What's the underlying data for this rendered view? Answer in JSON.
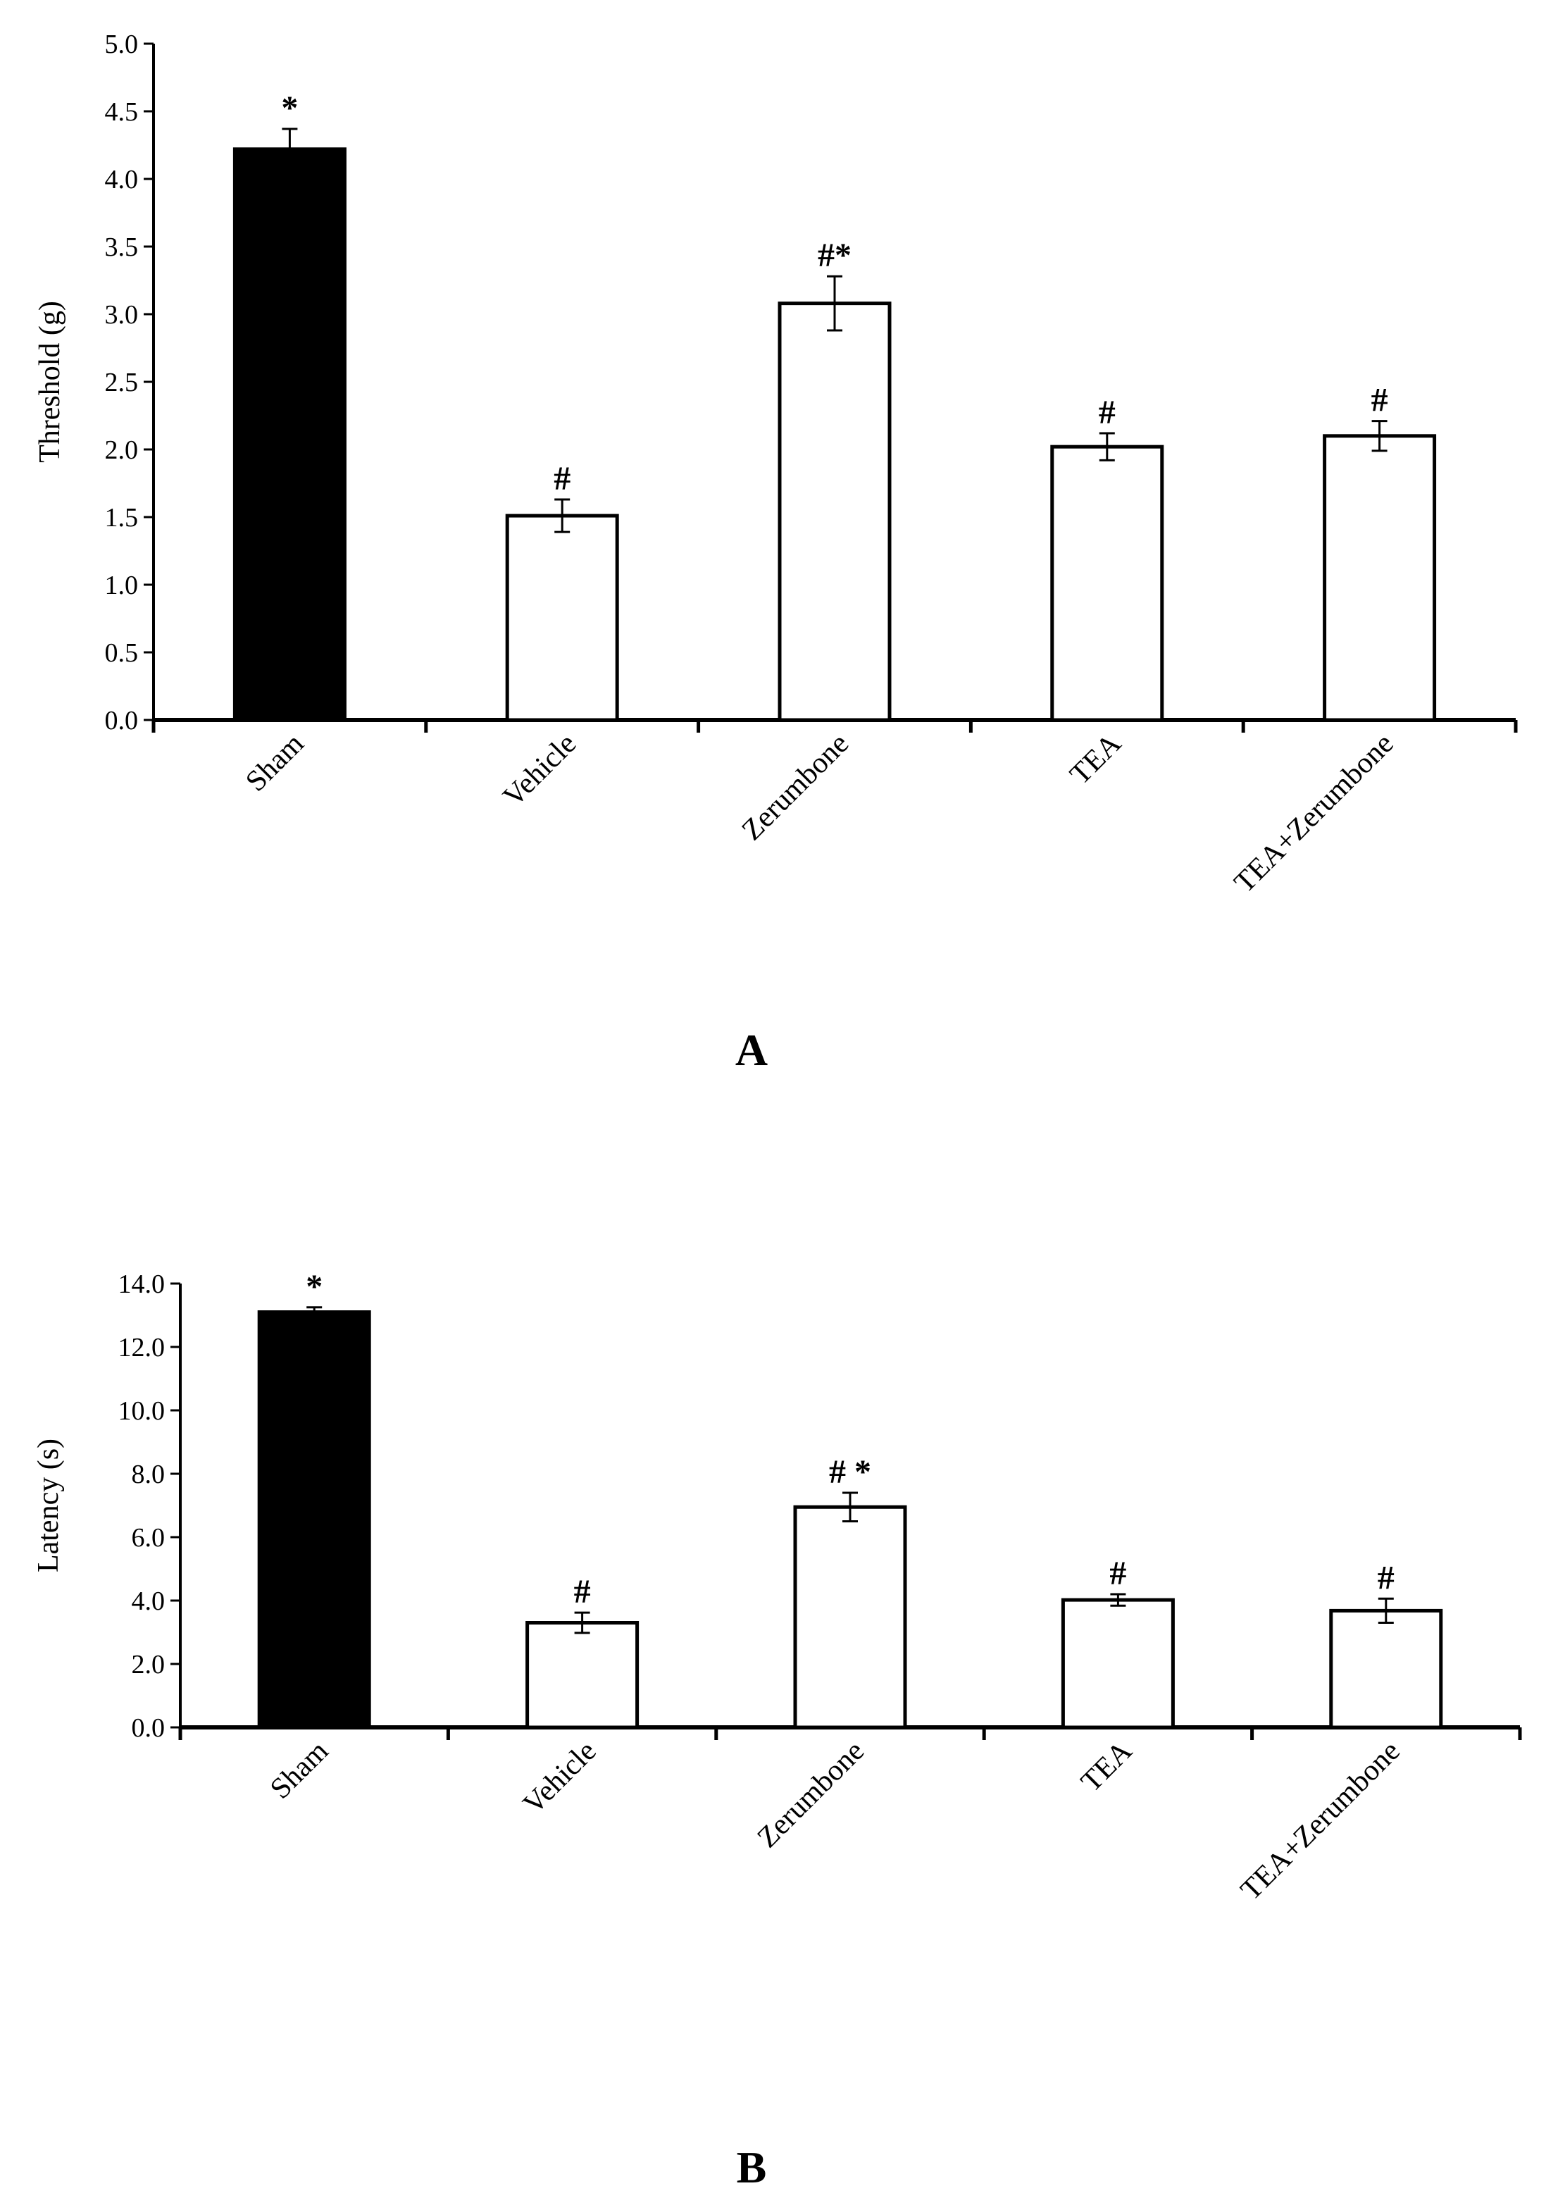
{
  "chart_data": [
    {
      "type": "bar",
      "panel_label": "A",
      "categories": [
        "Sham",
        "Vehicle",
        "Zerumbone",
        "TEA",
        "TEA+Zerumbone"
      ],
      "values": [
        4.22,
        1.51,
        3.08,
        2.02,
        2.1
      ],
      "errors": [
        0.15,
        0.12,
        0.2,
        0.1,
        0.11
      ],
      "markers": [
        "*",
        "#",
        "#*",
        "#",
        "#"
      ],
      "ylabel": "Threshold (g)",
      "ylim": [
        0,
        5.0
      ],
      "yticks": [
        "0.0",
        "0.5",
        "1.0",
        "1.5",
        "2.0",
        "2.5",
        "3.0",
        "3.5",
        "4.0",
        "4.5",
        "5.0"
      ],
      "bar_fills": [
        "#000000",
        "#ffffff",
        "#ffffff",
        "#ffffff",
        "#ffffff"
      ],
      "grid": false,
      "legend": "none"
    },
    {
      "type": "bar",
      "panel_label": "B",
      "categories": [
        "Sham",
        "Vehicle",
        "Zerumbone",
        "TEA",
        "TEA+Zerumbone"
      ],
      "values": [
        13.1,
        3.3,
        6.95,
        4.02,
        3.68
      ],
      "errors": [
        0.15,
        0.32,
        0.45,
        0.18,
        0.38
      ],
      "markers": [
        "*",
        "#",
        "# *",
        "#",
        "#"
      ],
      "ylabel": "Latency (s)",
      "ylim": [
        0,
        14.0
      ],
      "yticks": [
        "0.0",
        "2.0",
        "4.0",
        "6.0",
        "8.0",
        "10.0",
        "12.0",
        "14.0"
      ],
      "bar_fills": [
        "#000000",
        "#ffffff",
        "#ffffff",
        "#ffffff",
        "#ffffff"
      ],
      "grid": false,
      "legend": "none"
    }
  ]
}
